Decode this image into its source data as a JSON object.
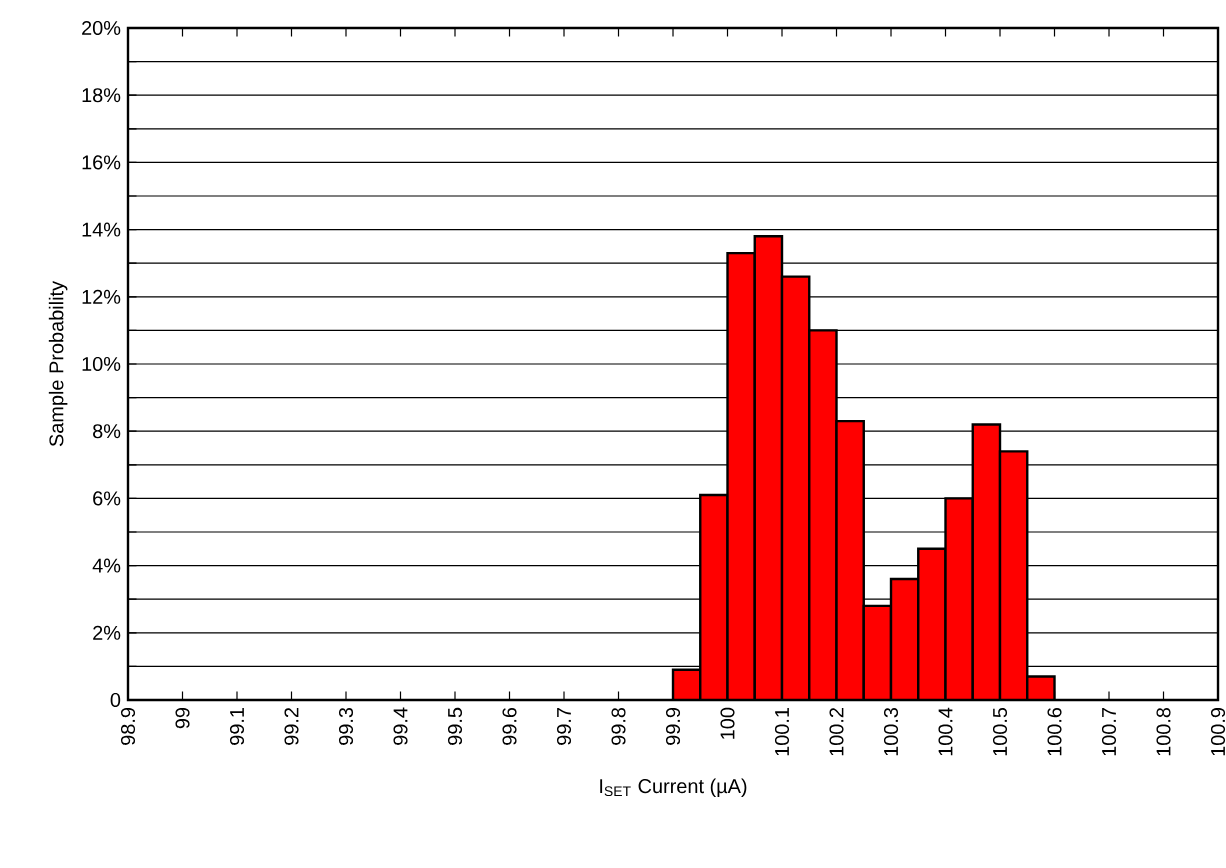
{
  "chart_data": {
    "type": "histogram",
    "xlabel": "I$_{SET}$ Current (µA)",
    "ylabel": "Sample Probability",
    "bins": [
      99.9,
      99.95,
      100.0,
      100.05,
      100.1,
      100.15,
      100.2,
      100.25,
      100.3,
      100.35,
      100.4,
      100.45,
      100.5,
      100.55,
      100.6
    ],
    "values": [
      0.9,
      6.1,
      13.3,
      13.8,
      12.6,
      11.0,
      8.3,
      2.8,
      3.6,
      4.5,
      6.0,
      8.2,
      7.4,
      0.7
    ],
    "color": "#ff0000",
    "xlim": [
      98.9,
      100.9
    ],
    "xticks": [
      98.9,
      99,
      99.1,
      99.2,
      99.3,
      99.4,
      99.5,
      99.6,
      99.7,
      99.8,
      99.9,
      100,
      100.1,
      100.2,
      100.3,
      100.4,
      100.5,
      100.6,
      100.7,
      100.8,
      100.9
    ],
    "ylim": [
      0,
      20
    ],
    "yticks": [
      0,
      {
        "value": 1,
        "label": null
      },
      {
        "value": 2,
        "label": "2%"
      },
      {
        "value": 3,
        "label": null
      },
      {
        "value": 4,
        "label": "4%"
      },
      {
        "value": 5,
        "label": null
      },
      {
        "value": 6,
        "label": "6%"
      },
      {
        "value": 7,
        "label": null
      },
      {
        "value": 8,
        "label": "8%"
      },
      {
        "value": 9,
        "label": null
      },
      {
        "value": 10,
        "label": "10%"
      },
      {
        "value": 11,
        "label": null
      },
      {
        "value": 12,
        "label": "12%"
      },
      {
        "value": 13,
        "label": null
      },
      {
        "value": 14,
        "label": "14%"
      },
      {
        "value": 15,
        "label": null
      },
      {
        "value": 16,
        "label": "16%"
      },
      {
        "value": 17,
        "label": null
      },
      {
        "value": 18,
        "label": "18%"
      },
      {
        "value": 19,
        "label": null
      },
      {
        "value": 20,
        "label": "20%"
      }
    ],
    "grid": "y"
  }
}
